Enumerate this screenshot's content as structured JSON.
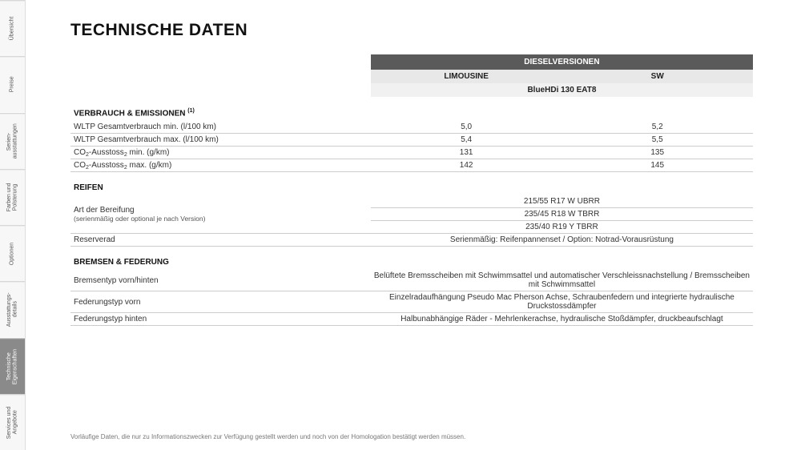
{
  "sidebar": {
    "tabs": [
      {
        "label": "Übersicht",
        "active": false
      },
      {
        "label": "Preise",
        "active": false
      },
      {
        "label": "Serien-\nausstattungen",
        "active": false
      },
      {
        "label": "Farben und\nPolsterung",
        "active": false
      },
      {
        "label": "Optionen",
        "active": false
      },
      {
        "label": "Ausstattungs-\ndetails",
        "active": false
      },
      {
        "label": "Technische\nEigenschaften",
        "active": true
      },
      {
        "label": "Services und\nAngebote",
        "active": false
      }
    ]
  },
  "title": "TECHNISCHE DATEN",
  "header": {
    "group": "DIESELVERSIONEN",
    "variants": [
      "LIMOUSINE",
      "SW"
    ],
    "engine": "BlueHDi 130  EAT8"
  },
  "sections": [
    {
      "title": "VERBRAUCH & EMISSIONEN",
      "title_sup": "(1)",
      "rows": [
        {
          "label": "WLTP Gesamtverbrauch min. (l/100 km)",
          "v1": "5,0",
          "v2": "5,2"
        },
        {
          "label": "WLTP Gesamtverbrauch max. (l/100 km)",
          "v1": "5,4",
          "v2": "5,5"
        },
        {
          "label_html": "CO<sub>2</sub>-Ausstoss<sub>2</sub> min. (g/km)",
          "v1": "131",
          "v2": "135"
        },
        {
          "label_html": "CO<sub>2</sub>-Ausstoss<sub>2</sub> max. (g/km)",
          "v1": "142",
          "v2": "145"
        }
      ]
    },
    {
      "title": "REIFEN",
      "rows": [
        {
          "label": "Art der Bereifung",
          "sublabel": "(serienmäßig oder optional je nach Version)",
          "merged_lines": [
            "215/55 R17 W UBRR",
            "235/45 R18 W TBRR",
            "235/40 R19 Y TBRR"
          ]
        },
        {
          "label": "Reserverad",
          "merged": "Serienmäßig: Reifenpannenset / Option: Notrad-Vorausrüstung"
        }
      ]
    },
    {
      "title": "BREMSEN & FEDERUNG",
      "rows": [
        {
          "label": "Bremsentyp vorn/hinten",
          "merged": "Belüftete Bremsscheiben mit Schwimmsattel und automatischer Verschleissnachstellung / Bremsscheiben mit Schwimmsattel"
        },
        {
          "label": "Federungstyp vorn",
          "merged": "Einzelradaufhängung Pseudo Mac Pherson Achse, Schraubenfedern und integrierte hydraulische Druckstossdämpfer"
        },
        {
          "label": "Federungstyp hinten",
          "merged": "Halbunabhängige Räder - Mehrlenkerachse, hydraulische Stoßdämpfer, druckbeaufschlagt"
        }
      ]
    }
  ],
  "footnote": "Vorläufige Daten, die nur zu Informationszwecken zur Verfügung gestellt werden und noch von der Homologation bestätigt werden müssen.",
  "colors": {
    "header_dark_bg": "#5a5a5a",
    "header_sub_bg": "#e8e8e8",
    "header_engine_bg": "#f1f1f1",
    "row_border": "#cccccc",
    "text": "#333333"
  }
}
